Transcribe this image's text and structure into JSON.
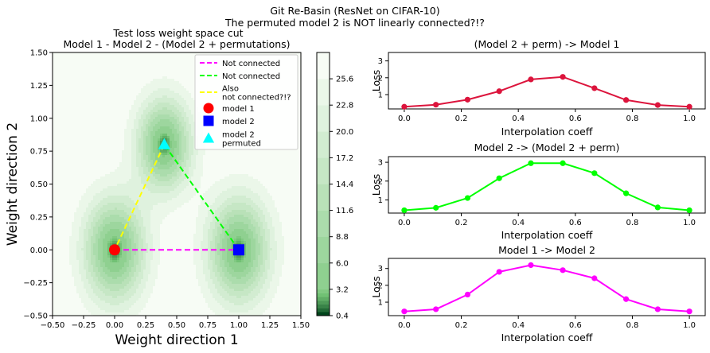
{
  "suptitle": [
    "Git Re-Basin (ResNet on CIFAR-10)",
    "The permuted model 2 is NOT linearly connected?!?"
  ],
  "colors": {
    "magenta": "#ff00ff",
    "green": "#00ff00",
    "yellow": "#ffff00",
    "red": "#ff0000",
    "blue": "#0000ff",
    "cyan": "#00ffff",
    "crimson": "#dc143c",
    "colormap": "Greens_r"
  },
  "chart_data": [
    {
      "type": "contour",
      "title": [
        "Test loss weight space cut",
        "Model 1 - Model 2 - (Model 2 + permutations)"
      ],
      "xlabel": "Weight direction 1",
      "ylabel": "Weight direction 2",
      "xlim": [
        -0.5,
        1.5
      ],
      "ylim": [
        -0.5,
        1.5
      ],
      "xticks": [
        "−0.50",
        "−0.25",
        "0.00",
        "0.25",
        "0.50",
        "0.75",
        "1.00",
        "1.25",
        "1.50"
      ],
      "yticks": [
        "−0.50",
        "−0.25",
        "0.00",
        "0.25",
        "0.50",
        "0.75",
        "1.00",
        "1.25",
        "1.50"
      ],
      "minima": [
        {
          "x": 0.0,
          "y": 0.0
        },
        {
          "x": 1.0,
          "y": 0.0
        },
        {
          "x": 0.4,
          "y": 0.8
        }
      ],
      "lines": [
        {
          "name": "Not connected",
          "x": [
            0.0,
            1.0
          ],
          "y": [
            0.0,
            0.0
          ],
          "color": "#ff00ff"
        },
        {
          "name": "Not connected",
          "x": [
            1.0,
            0.4
          ],
          "y": [
            0.0,
            0.8
          ],
          "color": "#00ff00"
        },
        {
          "name": "Also\nnot connected?!?",
          "x": [
            0.4,
            0.0
          ],
          "y": [
            0.8,
            0.0
          ],
          "color": "#ffff00"
        }
      ],
      "markers": [
        {
          "name": "model 1",
          "x": 0.0,
          "y": 0.0,
          "shape": "circle",
          "color": "#ff0000"
        },
        {
          "name": "model 2",
          "x": 1.0,
          "y": 0.0,
          "shape": "square",
          "color": "#0000ff"
        },
        {
          "name": "model 2\npermuted",
          "x": 0.4,
          "y": 0.8,
          "shape": "triangle",
          "color": "#00ffff"
        }
      ],
      "colorbar": {
        "levels": [
          0.4,
          0.8,
          1.2,
          1.6,
          2.0,
          2.4,
          2.8,
          3.2,
          6.0,
          8.8,
          11.6,
          14.4,
          17.2,
          20.0,
          22.8,
          25.6,
          28.4
        ],
        "ticks": [
          "0.4",
          "3.2",
          "6.0",
          "8.8",
          "11.6",
          "14.4",
          "17.2",
          "20.0",
          "22.8",
          "25.6"
        ],
        "tick_values": [
          0.4,
          3.2,
          6.0,
          8.8,
          11.6,
          14.4,
          17.2,
          20.0,
          22.8,
          25.6
        ]
      },
      "legend": "upper right"
    },
    {
      "type": "line",
      "title": "(Model 2 + perm) -> Model 1",
      "xlabel": "Interpolation coeff",
      "ylabel": "Loss",
      "x": [
        0.0,
        0.111,
        0.222,
        0.333,
        0.444,
        0.556,
        0.667,
        0.778,
        0.889,
        1.0
      ],
      "y": [
        0.28,
        0.4,
        0.7,
        1.2,
        1.9,
        2.05,
        1.38,
        0.68,
        0.38,
        0.28
      ],
      "ylim": [
        0.15,
        3.5
      ],
      "xticks": [
        "0.0",
        "0.2",
        "0.4",
        "0.6",
        "0.8",
        "1.0"
      ],
      "yticks": [
        "1",
        "2",
        "3"
      ],
      "color": "#dc143c"
    },
    {
      "type": "line",
      "title": "Model 2 -> (Model 2 + perm)",
      "xlabel": "Interpolation coeff",
      "ylabel": "Loss",
      "x": [
        0.0,
        0.111,
        0.222,
        0.333,
        0.444,
        0.556,
        0.667,
        0.778,
        0.889,
        1.0
      ],
      "y": [
        0.45,
        0.58,
        1.1,
        2.15,
        2.95,
        2.95,
        2.42,
        1.35,
        0.6,
        0.45
      ],
      "ylim": [
        0.3,
        3.3
      ],
      "xticks": [
        "0.0",
        "0.2",
        "0.4",
        "0.6",
        "0.8",
        "1.0"
      ],
      "yticks": [
        "1",
        "2",
        "3"
      ],
      "color": "#00ff00"
    },
    {
      "type": "line",
      "title": "Model 1 -> Model 2",
      "xlabel": "Interpolation coeff",
      "ylabel": "Loss",
      "x": [
        0.0,
        0.111,
        0.222,
        0.333,
        0.444,
        0.556,
        0.667,
        0.778,
        0.889,
        1.0
      ],
      "y": [
        0.45,
        0.58,
        1.45,
        2.8,
        3.2,
        2.9,
        2.42,
        1.18,
        0.58,
        0.45
      ],
      "ylim": [
        0.2,
        3.6
      ],
      "xticks": [
        "0.0",
        "0.2",
        "0.4",
        "0.6",
        "0.8",
        "1.0"
      ],
      "yticks": [
        "1",
        "2",
        "3"
      ],
      "color": "#ff00ff"
    }
  ]
}
